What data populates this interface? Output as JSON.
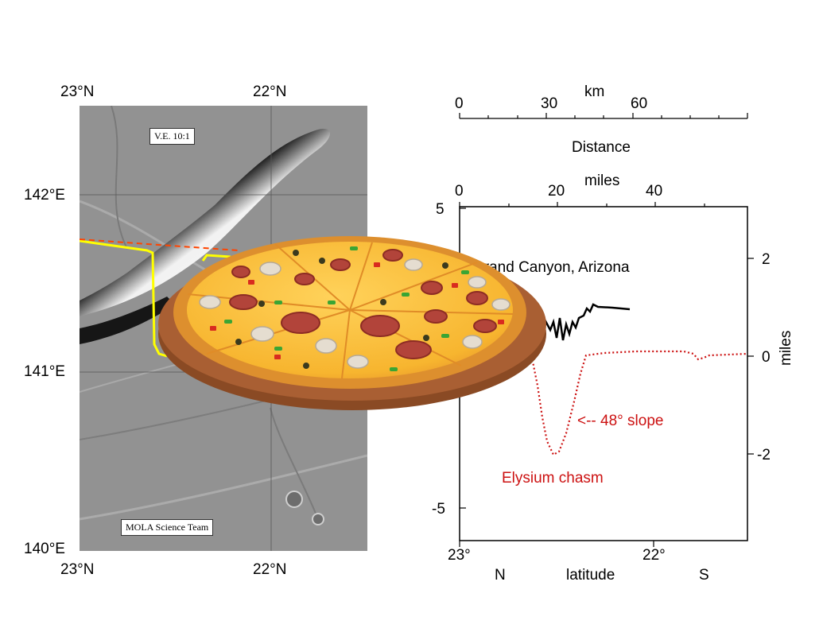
{
  "map": {
    "top_lat_labels": [
      "23°N",
      "22°N"
    ],
    "bottom_lat_labels": [
      "23°N",
      "22°N"
    ],
    "lon_labels": [
      "142°E",
      "141°E",
      "140°E"
    ],
    "ve_label": "V.E. 10:1",
    "credit": "MOLA Science Team"
  },
  "profile": {
    "km_axis": {
      "title": "km",
      "ticks": [
        "0",
        "30",
        "60"
      ]
    },
    "distance_label": "Distance",
    "miles_top_axis": {
      "title": "miles",
      "ticks": [
        "0",
        "20",
        "40"
      ]
    },
    "left_ticks": [
      "5",
      "-5"
    ],
    "right_ticks": [
      "2",
      "0",
      "-2"
    ],
    "right_axis_title": "miles",
    "bottom_ticks": [
      "23°",
      "22°"
    ],
    "bottom_words": {
      "north": "N",
      "latitude": "latitude",
      "south": "S"
    },
    "grand_canyon_label": "Grand Canyon, Arizona",
    "slope_label": "<-- 48° slope",
    "chasm_label": "Elysium chasm",
    "colors": {
      "chasm": "#cc1111",
      "grand_canyon": "#000000",
      "track_yellow": "#ffff00",
      "track_red": "#ff4400"
    }
  },
  "overlay": {
    "pizza": "pepperoni-pizza-on-wooden-board"
  }
}
